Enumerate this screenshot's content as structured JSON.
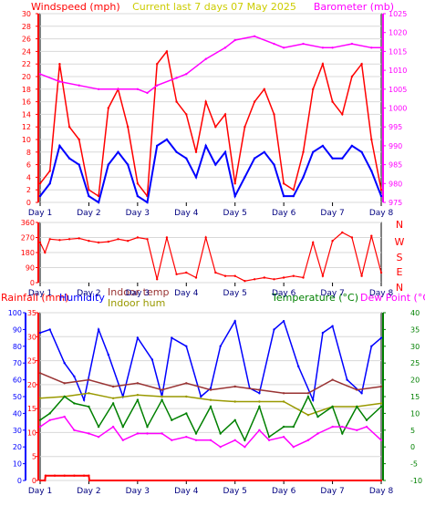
{
  "header": {
    "left_label": "Windspeed (mph)",
    "center_label": "Current last 7 days 07 May 2025",
    "right_label": "Barometer (mb)"
  },
  "compass": [
    "N",
    "W",
    "S",
    "E",
    "N"
  ],
  "bottom_legend": {
    "rainfall": "Rainfall (mm)",
    "humidity": "Humidity",
    "indoor_temp": "Indoor temp",
    "indoor_hum": "Indoor hum",
    "temperature": "Temperature (°C)",
    "dew_point": "Dew Point (°C)"
  },
  "colors": {
    "windspeed": "#ff0000",
    "gust": "#ff0000",
    "wind_avg": "#0000ff",
    "barometer": "#ff00ff",
    "direction": "#ff0000",
    "rainfall": "#ff0000",
    "humidity": "#0000ff",
    "indoor_temp": "#993333",
    "indoor_hum": "#999900",
    "temperature": "#008000",
    "dew_point": "#ff00ff",
    "axis_left": "#ff0000",
    "axis_right": "#ff00ff",
    "header_center": "#cccc00"
  },
  "chart_data": [
    {
      "type": "line",
      "id": "wind",
      "title": "Current last 7 days 07 May 2025",
      "x_ticks": [
        "Day 1",
        "Day 2",
        "Day 3",
        "Day 4",
        "Day 5",
        "Day 6",
        "Day 7",
        "Day 8"
      ],
      "y_left": {
        "label": "Windspeed (mph)",
        "min": 0,
        "max": 30,
        "ticks": [
          0,
          2,
          4,
          6,
          8,
          10,
          12,
          14,
          16,
          18,
          20,
          22,
          24,
          26,
          28,
          30
        ]
      },
      "y_right": {
        "label": "Barometer (mb)",
        "min": 975,
        "max": 1025,
        "ticks": [
          975,
          980,
          985,
          990,
          995,
          1000,
          1005,
          1010,
          1015,
          1020,
          1025
        ]
      },
      "series": [
        {
          "name": "Windspeed (mph)",
          "axis": "left",
          "x": [
            1.0,
            1.2,
            1.4,
            1.6,
            1.8,
            2.0,
            2.2,
            2.4,
            2.6,
            2.8,
            3.0,
            3.2,
            3.4,
            3.6,
            3.8,
            4.0,
            4.2,
            4.4,
            4.6,
            4.8,
            5.0,
            5.2,
            5.4,
            5.6,
            5.8,
            6.0,
            6.2,
            6.4,
            6.6,
            6.8,
            7.0,
            7.2,
            7.4,
            7.6,
            7.8,
            8.0
          ],
          "values": [
            3,
            5,
            22,
            12,
            10,
            2,
            1,
            15,
            18,
            12,
            3,
            1,
            22,
            24,
            16,
            14,
            8,
            16,
            12,
            14,
            3,
            12,
            16,
            18,
            14,
            3,
            2,
            8,
            18,
            22,
            16,
            14,
            20,
            22,
            10,
            2
          ]
        },
        {
          "name": "Wind average",
          "axis": "left",
          "x": [
            1.0,
            1.2,
            1.4,
            1.6,
            1.8,
            2.0,
            2.2,
            2.4,
            2.6,
            2.8,
            3.0,
            3.2,
            3.4,
            3.6,
            3.8,
            4.0,
            4.2,
            4.4,
            4.6,
            4.8,
            5.0,
            5.2,
            5.4,
            5.6,
            5.8,
            6.0,
            6.2,
            6.4,
            6.6,
            6.8,
            7.0,
            7.2,
            7.4,
            7.6,
            7.8,
            8.0
          ],
          "values": [
            1,
            3,
            9,
            7,
            6,
            1,
            0,
            6,
            8,
            6,
            1,
            0,
            9,
            10,
            8,
            7,
            4,
            9,
            6,
            8,
            1,
            4,
            7,
            8,
            6,
            1,
            1,
            4,
            8,
            9,
            7,
            7,
            9,
            8,
            5,
            1
          ]
        },
        {
          "name": "Barometer (mb)",
          "axis": "right",
          "x": [
            1.0,
            1.4,
            1.8,
            2.2,
            2.6,
            3.0,
            3.2,
            3.4,
            3.8,
            4.0,
            4.4,
            4.8,
            5.0,
            5.4,
            5.8,
            6.0,
            6.4,
            6.8,
            7.0,
            7.4,
            7.8,
            8.0
          ],
          "values": [
            1009,
            1007,
            1006,
            1005,
            1005,
            1005,
            1004,
            1006,
            1008,
            1009,
            1013,
            1016,
            1018,
            1019,
            1017,
            1016,
            1017,
            1016,
            1016,
            1017,
            1016,
            1016
          ]
        }
      ]
    },
    {
      "type": "line",
      "id": "direction",
      "x_ticks": [
        "Day 1",
        "Day 2",
        "Day 3",
        "Day 4",
        "Day 5",
        "Day 6",
        "Day 7",
        "Day 8"
      ],
      "y_left": {
        "min": 0,
        "max": 360,
        "ticks": [
          0,
          90,
          180,
          270,
          360
        ]
      },
      "series": [
        {
          "name": "Wind direction",
          "x": [
            1.0,
            1.1,
            1.2,
            1.4,
            1.6,
            1.8,
            2.0,
            2.2,
            2.4,
            2.6,
            2.8,
            3.0,
            3.2,
            3.4,
            3.6,
            3.8,
            4.0,
            4.2,
            4.4,
            4.6,
            4.8,
            5.0,
            5.2,
            5.4,
            5.6,
            5.8,
            6.0,
            6.2,
            6.4,
            6.6,
            6.8,
            7.0,
            7.2,
            7.4,
            7.6,
            7.8,
            8.0
          ],
          "values": [
            240,
            180,
            260,
            255,
            260,
            265,
            250,
            240,
            245,
            260,
            250,
            270,
            260,
            20,
            270,
            50,
            60,
            30,
            270,
            60,
            40,
            40,
            10,
            20,
            30,
            20,
            30,
            40,
            30,
            240,
            40,
            250,
            300,
            270,
            40,
            280,
            60
          ]
        }
      ]
    },
    {
      "type": "line",
      "id": "bottom",
      "x_ticks": [
        "Day 1",
        "Day 2",
        "Day 3",
        "Day 4",
        "Day 5",
        "Day 6",
        "Day 7",
        "Day 8"
      ],
      "y_rain": {
        "label": "Rainfall (mm)",
        "min": 0,
        "max": 35,
        "ticks": [
          0,
          5,
          10,
          15,
          20,
          25,
          30,
          35
        ]
      },
      "y_humidity": {
        "label": "Humidity",
        "min": 0,
        "max": 100,
        "ticks": [
          0,
          10,
          20,
          30,
          40,
          50,
          60,
          70,
          80,
          90,
          100
        ]
      },
      "y_temp": {
        "label": "Temperature (°C)",
        "min": -10,
        "max": 40,
        "ticks": [
          -10,
          -5,
          0,
          5,
          10,
          15,
          20,
          25,
          30,
          35,
          40
        ]
      },
      "series": [
        {
          "name": "Rainfall (mm)",
          "axis": "rain",
          "x": [
            1.0,
            1.1,
            1.11,
            1.3,
            1.5,
            1.7,
            1.9,
            2.0,
            2.01,
            8.0
          ],
          "values": [
            0,
            0,
            1,
            1,
            1,
            1,
            1,
            1,
            0,
            0
          ]
        },
        {
          "name": "Humidity",
          "axis": "humidity",
          "x": [
            1.0,
            1.2,
            1.5,
            1.7,
            1.9,
            2.2,
            2.4,
            2.7,
            3.0,
            3.3,
            3.5,
            3.7,
            4.0,
            4.3,
            4.5,
            4.7,
            5.0,
            5.3,
            5.5,
            5.8,
            6.0,
            6.3,
            6.6,
            6.8,
            7.0,
            7.3,
            7.6,
            7.8,
            8.0
          ],
          "values": [
            88,
            90,
            70,
            62,
            48,
            90,
            75,
            50,
            85,
            72,
            50,
            85,
            80,
            50,
            55,
            80,
            95,
            55,
            52,
            90,
            95,
            68,
            48,
            88,
            92,
            60,
            52,
            80,
            85
          ]
        },
        {
          "name": "Indoor temp",
          "axis": "temp",
          "x": [
            1.0,
            1.5,
            2.0,
            2.5,
            3.0,
            3.5,
            4.0,
            4.5,
            5.0,
            5.5,
            6.0,
            6.5,
            7.0,
            7.5,
            8.0
          ],
          "values": [
            22,
            19,
            20,
            18,
            19,
            17,
            19,
            17,
            18,
            17,
            16,
            16,
            20,
            17,
            18
          ]
        },
        {
          "name": "Indoor hum",
          "axis": "humidity",
          "x": [
            1.0,
            1.5,
            2.0,
            2.5,
            3.0,
            3.5,
            4.0,
            4.5,
            5.0,
            5.5,
            6.0,
            6.5,
            7.0,
            7.5,
            8.0
          ],
          "values": [
            49,
            50,
            52,
            49,
            51,
            50,
            50,
            48,
            47,
            47,
            47,
            39,
            44,
            44,
            46
          ]
        },
        {
          "name": "Temperature (°C)",
          "axis": "temp",
          "x": [
            1.0,
            1.2,
            1.5,
            1.7,
            2.0,
            2.2,
            2.5,
            2.7,
            3.0,
            3.2,
            3.5,
            3.7,
            4.0,
            4.2,
            4.5,
            4.7,
            5.0,
            5.2,
            5.5,
            5.7,
            6.0,
            6.2,
            6.5,
            6.7,
            7.0,
            7.2,
            7.5,
            7.7,
            8.0
          ],
          "values": [
            8,
            10,
            15,
            13,
            12,
            6,
            13,
            6,
            14,
            6,
            14,
            8,
            10,
            4,
            12,
            4,
            8,
            2,
            12,
            3,
            6,
            6,
            15,
            9,
            12,
            4,
            12,
            8,
            12
          ]
        },
        {
          "name": "Dew Point (°C)",
          "axis": "temp",
          "x": [
            1.0,
            1.2,
            1.5,
            1.7,
            2.0,
            2.2,
            2.5,
            2.7,
            3.0,
            3.2,
            3.5,
            3.7,
            4.0,
            4.2,
            4.5,
            4.7,
            5.0,
            5.2,
            5.5,
            5.7,
            6.0,
            6.2,
            6.5,
            6.7,
            7.0,
            7.2,
            7.5,
            7.7,
            8.0
          ],
          "values": [
            6,
            8,
            9,
            5,
            4,
            3,
            6,
            2,
            4,
            4,
            4,
            2,
            3,
            2,
            2,
            0,
            2,
            0,
            5,
            2,
            3,
            0,
            2,
            4,
            6,
            6,
            5,
            6,
            2
          ]
        }
      ]
    }
  ]
}
